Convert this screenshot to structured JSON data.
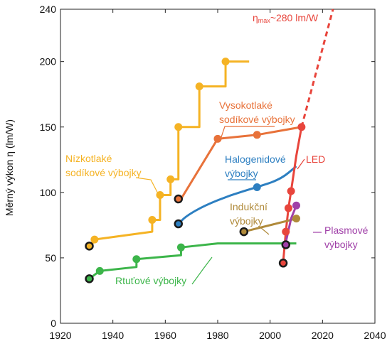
{
  "chart_data": {
    "type": "line",
    "title": "",
    "xlabel": "",
    "ylabel": "Měrný výkon η (lm/W)",
    "xlim": [
      1920,
      2040
    ],
    "ylim": [
      0,
      240
    ],
    "xticks": [
      1920,
      1940,
      1960,
      1980,
      2000,
      2020,
      2040
    ],
    "yticks": [
      0,
      50,
      100,
      150,
      200,
      240
    ],
    "grid": false,
    "series": [
      {
        "name": "Nízkotlaké sodíkové výbojky",
        "color": "#f5b324",
        "step_points": [
          [
            1932,
            60
          ],
          [
            1933,
            64
          ],
          [
            1955,
            70
          ],
          [
            1955,
            79
          ],
          [
            1958,
            79
          ],
          [
            1958,
            98
          ],
          [
            1962,
            98
          ],
          [
            1962,
            110
          ],
          [
            1965,
            110
          ],
          [
            1965,
            150
          ],
          [
            1973,
            150
          ],
          [
            1973,
            181
          ],
          [
            1983,
            181
          ],
          [
            1983,
            200
          ],
          [
            1992,
            200
          ]
        ],
        "markers": [
          [
            1933,
            64
          ],
          [
            1955,
            79
          ],
          [
            1958,
            98
          ],
          [
            1962,
            110
          ],
          [
            1965,
            150
          ],
          [
            1973,
            181
          ],
          [
            1983,
            200
          ]
        ],
        "start": [
          1931,
          59
        ]
      },
      {
        "name": "Vysokotlaké sodíkové výbojky",
        "color": "#e8723a",
        "points": [
          [
            1966,
            95
          ],
          [
            1980,
            141
          ],
          [
            1995,
            144
          ],
          [
            2012,
            150
          ]
        ],
        "markers": [
          [
            1980,
            141
          ],
          [
            1995,
            144
          ]
        ],
        "start": [
          1965,
          95
        ]
      },
      {
        "name": "Halogenidové výbojky",
        "color": "#2d7fc1",
        "curve": [
          [
            1965,
            76
          ],
          [
            1968,
            82
          ],
          [
            1975,
            90
          ],
          [
            1985,
            98
          ],
          [
            1995,
            104
          ],
          [
            2004,
            110
          ],
          [
            2010,
            120
          ]
        ],
        "markers": [
          [
            1995,
            104
          ]
        ],
        "start": [
          1965,
          76
        ]
      },
      {
        "name": "LED",
        "color": "#e8453c",
        "points": [
          [
            2005,
            47
          ],
          [
            2006,
            70
          ],
          [
            2007,
            88
          ],
          [
            2008,
            101
          ],
          [
            2010,
            128
          ],
          [
            2012,
            150
          ]
        ],
        "markers": [
          [
            2006,
            70
          ],
          [
            2007,
            88
          ],
          [
            2008,
            101
          ],
          [
            2012,
            150
          ]
        ],
        "start": [
          2005,
          46
        ],
        "projection": [
          [
            2012,
            150
          ],
          [
            2024,
            240
          ]
        ],
        "projection_label": "ηmax~280 lm/W"
      },
      {
        "name": "Indukční výbojky",
        "color": "#b08a3a",
        "points": [
          [
            1990,
            70
          ],
          [
            2010,
            80
          ]
        ],
        "markers": [
          [
            2010,
            80
          ]
        ],
        "start": [
          1990,
          70
        ]
      },
      {
        "name": "Plasmové výbojky",
        "color": "#a040a8",
        "points": [
          [
            2006,
            62
          ],
          [
            2008,
            80
          ],
          [
            2010,
            90
          ]
        ],
        "markers": [
          [
            2010,
            90
          ]
        ],
        "start": [
          2006,
          60
        ]
      },
      {
        "name": "Rtuťové výbojky",
        "color": "#3cb54a",
        "step_points": [
          [
            1931,
            34
          ],
          [
            1935,
            40
          ],
          [
            1949,
            43
          ],
          [
            1949,
            49
          ],
          [
            1966,
            52
          ],
          [
            1966,
            58
          ],
          [
            1980,
            61
          ],
          [
            2010,
            61
          ]
        ],
        "markers": [
          [
            1935,
            40
          ],
          [
            1949,
            49
          ],
          [
            1966,
            58
          ]
        ],
        "start": [
          1931,
          34
        ]
      }
    ],
    "annotations": [
      {
        "text_lines": [
          "Nízkotlaké",
          "sodíkové výbojky"
        ],
        "color": "#f5b324",
        "series": "Nízkotlaké sodíkové výbojky"
      },
      {
        "text_lines": [
          "Vysokotlaké",
          "sodíkové výbojky"
        ],
        "color": "#e8723a",
        "series": "Vysokotlaké sodíkové výbojky"
      },
      {
        "text_lines": [
          "Halogenidové",
          "výbojky"
        ],
        "color": "#2d7fc1",
        "series": "Halogenidové výbojky"
      },
      {
        "text_lines": [
          "LED"
        ],
        "color": "#e8453c",
        "series": "LED"
      },
      {
        "text_lines": [
          "Indukční",
          "výbojky"
        ],
        "color": "#b08a3a",
        "series": "Indukční výbojky"
      },
      {
        "text_lines": [
          "Plasmové",
          "výbojky"
        ],
        "color": "#a040a8",
        "series": "Plasmové výbojky"
      },
      {
        "text_lines": [
          "Rtuťové výbojky"
        ],
        "color": "#3cb54a",
        "series": "Rtuťové výbojky"
      }
    ],
    "projection_label": {
      "prefix": "η",
      "subscript": "max",
      "suffix": "~280 lm/W",
      "color": "#e8453c"
    }
  }
}
